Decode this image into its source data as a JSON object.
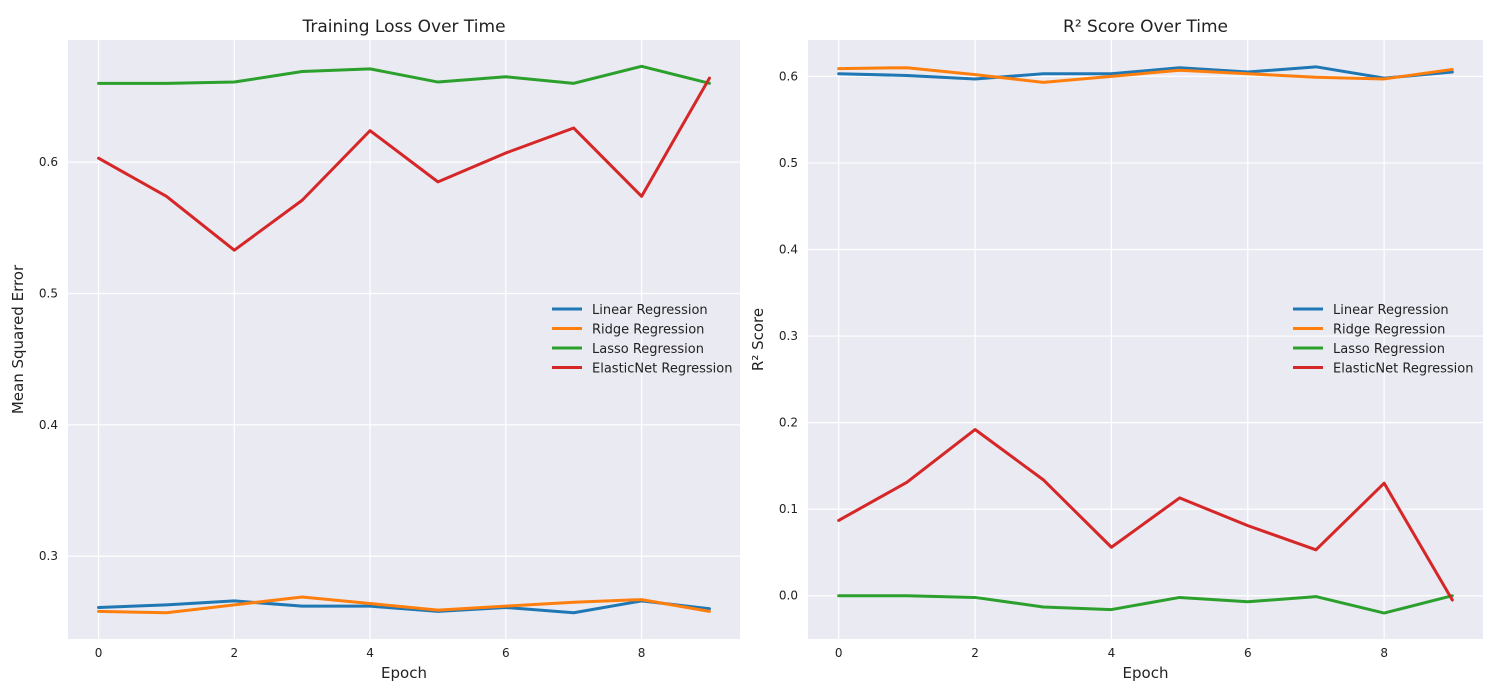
{
  "chart_data": [
    {
      "type": "line",
      "title": "Training Loss Over Time",
      "xlabel": "Epoch",
      "ylabel": "Mean Squared Error",
      "x": [
        0,
        1,
        2,
        3,
        4,
        5,
        6,
        7,
        8,
        9
      ],
      "xlim": [
        -0.45,
        9.45
      ],
      "ylim": [
        0.237,
        0.693
      ],
      "xticks": [
        0,
        2,
        4,
        6,
        8
      ],
      "xtick_labels": [
        "0",
        "2",
        "4",
        "6",
        "8"
      ],
      "yticks": [
        0.3,
        0.4,
        0.5,
        0.6
      ],
      "ytick_labels": [
        "0.3",
        "0.4",
        "0.5",
        "0.6"
      ],
      "grid": true,
      "legend_position": "center-right",
      "series": [
        {
          "name": "Linear Regression",
          "color": "#1f77b4",
          "values": [
            0.261,
            0.263,
            0.266,
            0.262,
            0.262,
            0.258,
            0.261,
            0.257,
            0.266,
            0.26
          ]
        },
        {
          "name": "Ridge Regression",
          "color": "#ff7f0e",
          "values": [
            0.258,
            0.257,
            0.263,
            0.269,
            0.264,
            0.259,
            0.262,
            0.265,
            0.267,
            0.258
          ]
        },
        {
          "name": "Lasso Regression",
          "color": "#2ca02c",
          "values": [
            0.66,
            0.66,
            0.661,
            0.669,
            0.671,
            0.661,
            0.665,
            0.66,
            0.673,
            0.66
          ]
        },
        {
          "name": "ElasticNet Regression",
          "color": "#d62728",
          "values": [
            0.603,
            0.574,
            0.533,
            0.571,
            0.624,
            0.585,
            0.607,
            0.626,
            0.574,
            0.664
          ]
        }
      ]
    },
    {
      "type": "line",
      "title": "R² Score Over Time",
      "xlabel": "Epoch",
      "ylabel": "R² Score",
      "x": [
        0,
        1,
        2,
        3,
        4,
        5,
        6,
        7,
        8,
        9
      ],
      "xlim": [
        -0.45,
        9.45
      ],
      "ylim": [
        -0.05,
        0.642
      ],
      "xticks": [
        0,
        2,
        4,
        6,
        8
      ],
      "xtick_labels": [
        "0",
        "2",
        "4",
        "6",
        "8"
      ],
      "yticks": [
        0.0,
        0.1,
        0.2,
        0.3,
        0.4,
        0.5,
        0.6
      ],
      "ytick_labels": [
        "0.0",
        "0.1",
        "0.2",
        "0.3",
        "0.4",
        "0.5",
        "0.6"
      ],
      "grid": true,
      "legend_position": "center-right",
      "series": [
        {
          "name": "Linear Regression",
          "color": "#1f77b4",
          "values": [
            0.603,
            0.601,
            0.597,
            0.603,
            0.603,
            0.61,
            0.605,
            0.611,
            0.598,
            0.605
          ]
        },
        {
          "name": "Ridge Regression",
          "color": "#ff7f0e",
          "values": [
            0.609,
            0.61,
            0.602,
            0.593,
            0.6,
            0.607,
            0.603,
            0.599,
            0.597,
            0.608
          ]
        },
        {
          "name": "Lasso Regression",
          "color": "#2ca02c",
          "values": [
            0.0,
            0.0,
            -0.002,
            -0.013,
            -0.016,
            -0.002,
            -0.007,
            -0.001,
            -0.02,
            0.0
          ]
        },
        {
          "name": "ElasticNet Regression",
          "color": "#d62728",
          "values": [
            0.087,
            0.131,
            0.192,
            0.134,
            0.056,
            0.113,
            0.081,
            0.053,
            0.13,
            -0.005
          ]
        }
      ]
    }
  ]
}
